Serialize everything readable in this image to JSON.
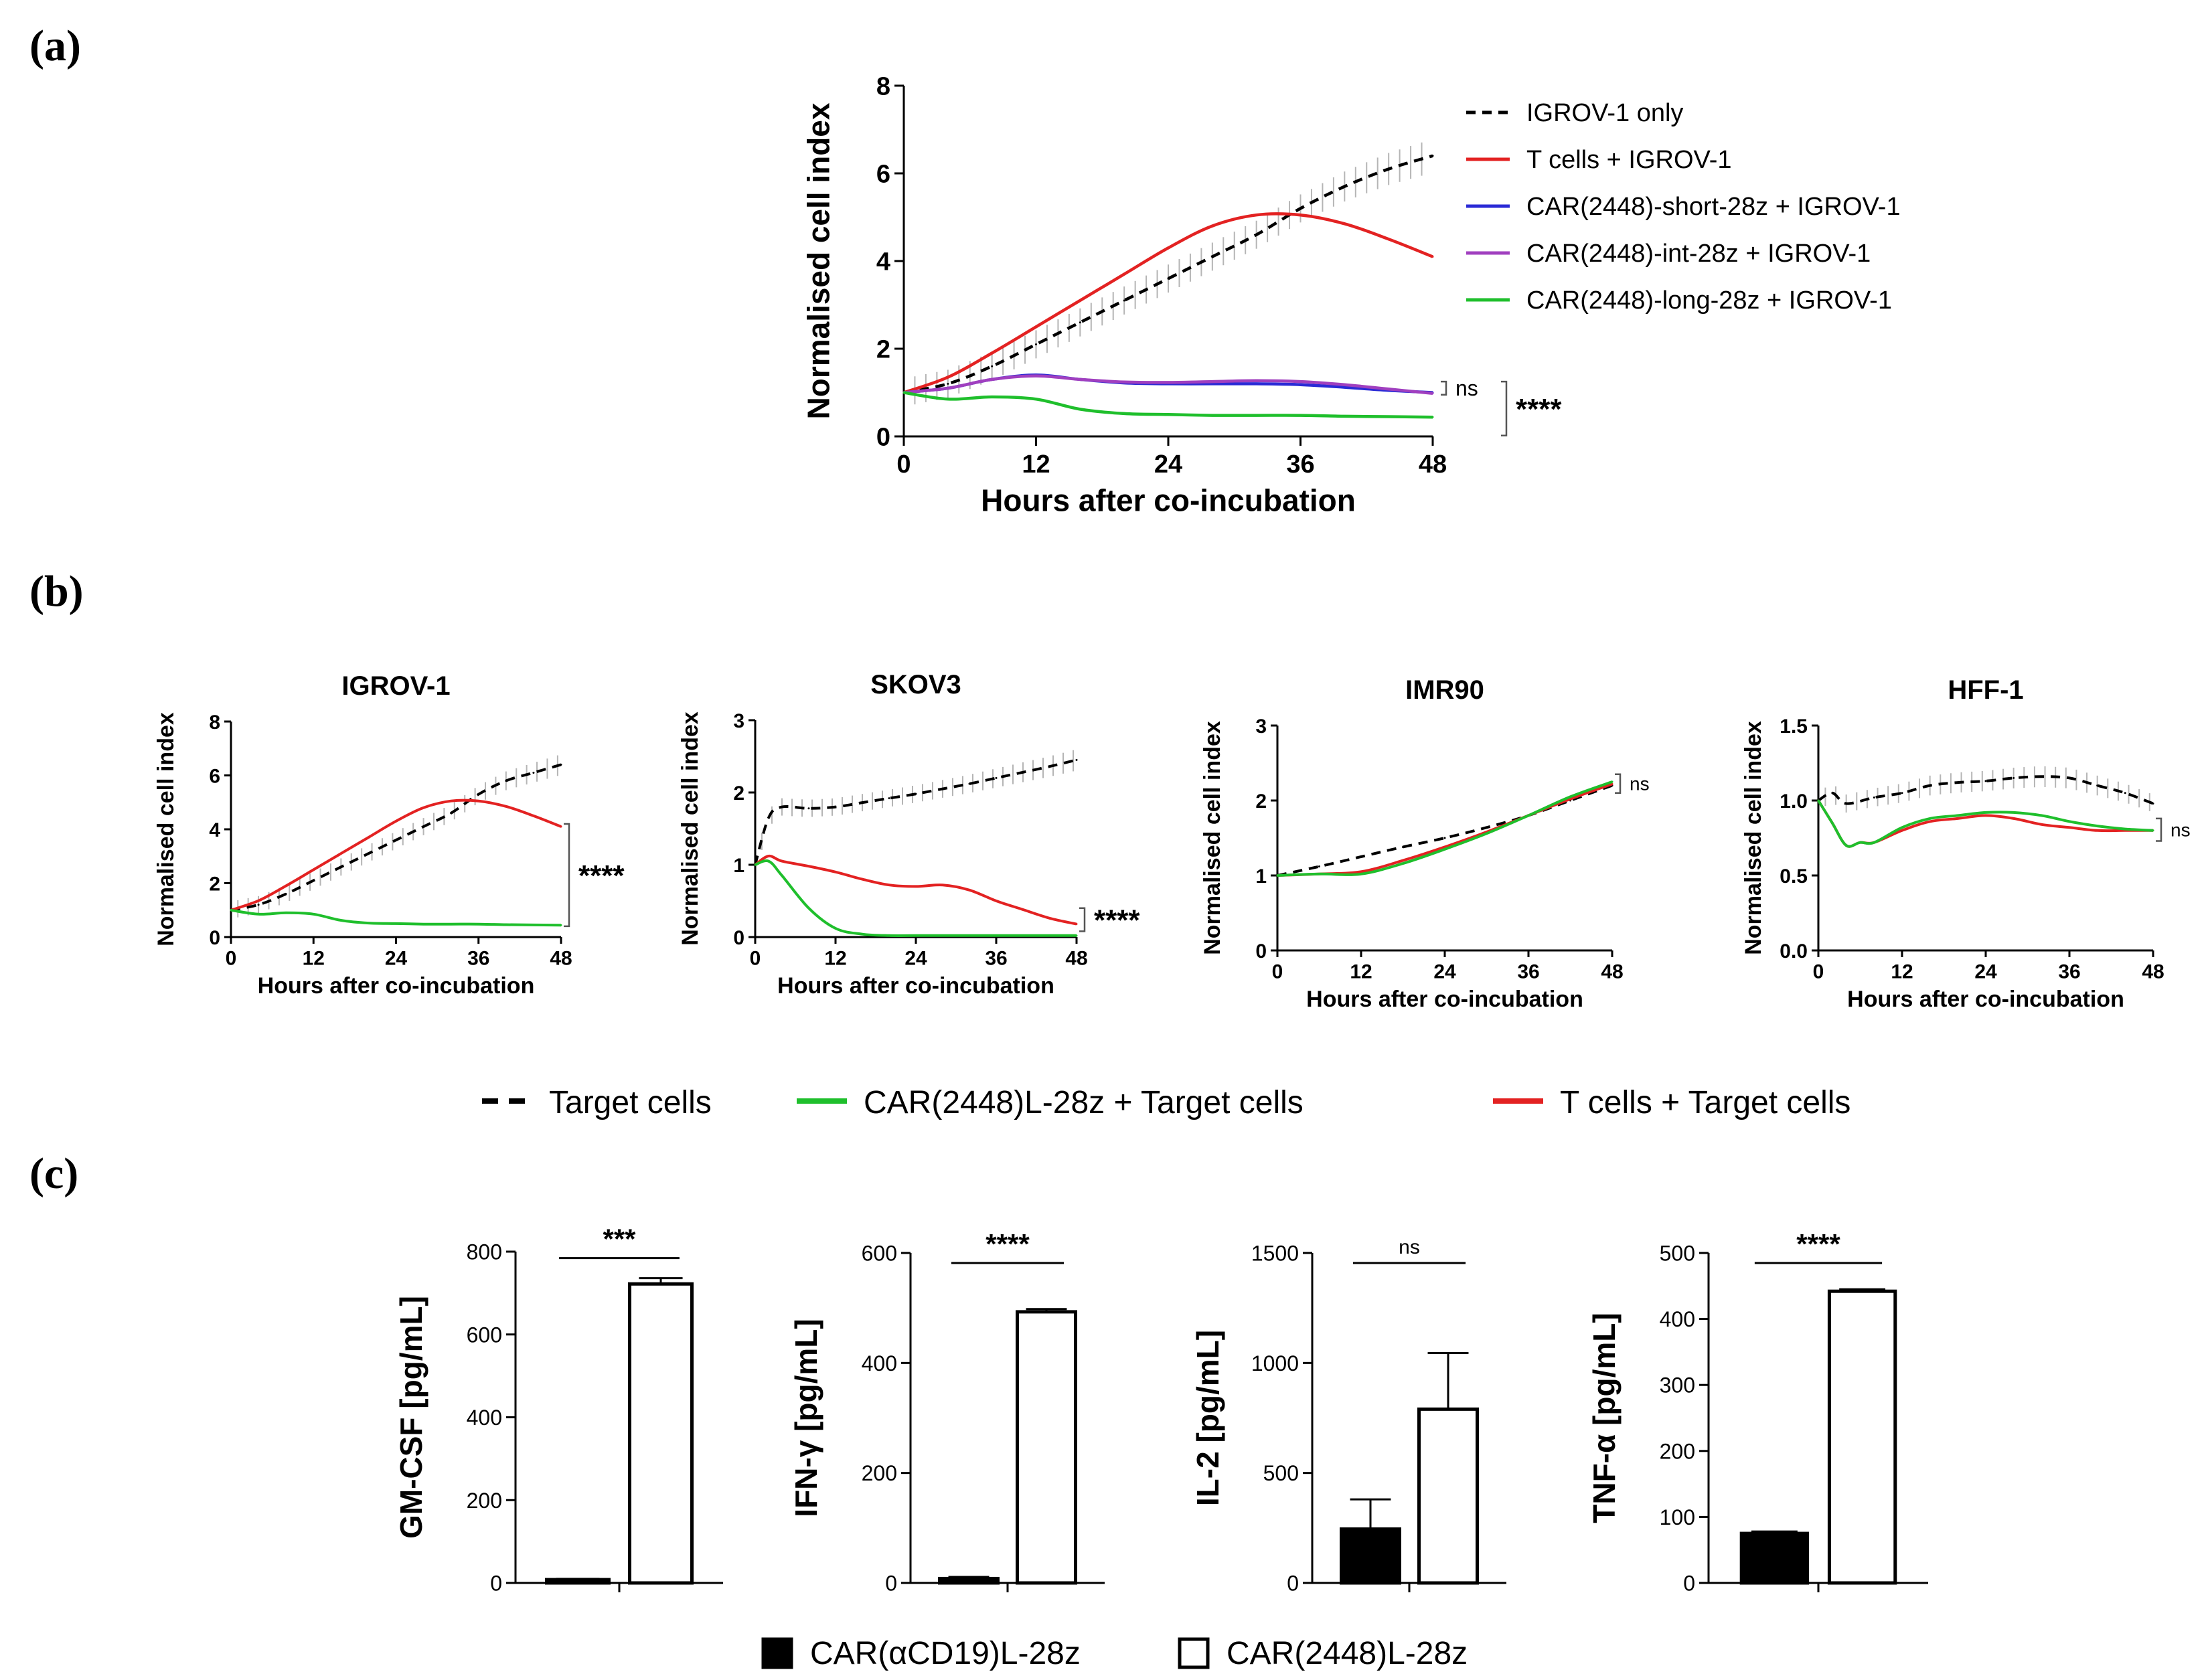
{
  "panel_labels": [
    "(a)",
    "(b)",
    "(c)"
  ],
  "colors": {
    "target_only": "#000000",
    "t_cells": "#e32222",
    "car_short": "#2a2ad6",
    "car_int": "#a03fbf",
    "car_long": "#1fbf2c",
    "error_bar": "#aaaaaa",
    "bar_fill_alpha_cd19": "#000000",
    "bar_fill_2448": "#ffffff"
  },
  "legend_b": [
    {
      "label": "Target cells",
      "style": "dashed",
      "color": "#000000"
    },
    {
      "label": "CAR(2448)L-28z + Target cells",
      "style": "solid",
      "color": "#1fbf2c"
    },
    {
      "label": "T cells + Target cells",
      "style": "solid",
      "color": "#e32222"
    }
  ],
  "legend_c": [
    {
      "label": "CAR(αCD19)L-28z",
      "fill": "#000000"
    },
    {
      "label": "CAR(2448)L-28z",
      "fill": "#ffffff"
    }
  ],
  "chart_data": [
    {
      "id": "a",
      "type": "line",
      "title": "",
      "xlabel": "Hours after co-incubation",
      "ylabel": "Normalised cell index",
      "xlim": [
        0,
        48
      ],
      "ylim": [
        0,
        8
      ],
      "xticks": [
        0,
        12,
        24,
        36,
        48
      ],
      "yticks": [
        0,
        2,
        4,
        6,
        8
      ],
      "legend_position": "top-right",
      "series": [
        {
          "name": "IGROV-1 only",
          "color": "#000000",
          "style": "dashed",
          "errorbars": true,
          "x": [
            0,
            4,
            8,
            12,
            16,
            20,
            24,
            28,
            32,
            36,
            40,
            44,
            48
          ],
          "y": [
            1.0,
            1.2,
            1.6,
            2.1,
            2.6,
            3.1,
            3.6,
            4.1,
            4.6,
            5.2,
            5.7,
            6.1,
            6.4
          ]
        },
        {
          "name": "T cells + IGROV-1",
          "color": "#e32222",
          "style": "solid",
          "x": [
            0,
            4,
            8,
            12,
            16,
            20,
            24,
            28,
            32,
            36,
            40,
            44,
            48
          ],
          "y": [
            1.0,
            1.35,
            1.9,
            2.5,
            3.1,
            3.7,
            4.3,
            4.8,
            5.05,
            5.05,
            4.85,
            4.5,
            4.1
          ]
        },
        {
          "name": "CAR(2448)-short-28z + IGROV-1",
          "color": "#2a2ad6",
          "style": "solid",
          "x": [
            0,
            4,
            8,
            12,
            16,
            20,
            24,
            28,
            32,
            36,
            40,
            44,
            48
          ],
          "y": [
            1.0,
            1.1,
            1.3,
            1.4,
            1.3,
            1.22,
            1.2,
            1.2,
            1.2,
            1.18,
            1.12,
            1.05,
            1.0
          ]
        },
        {
          "name": "CAR(2448)-int-28z + IGROV-1",
          "color": "#a03fbf",
          "style": "solid",
          "x": [
            0,
            4,
            8,
            12,
            16,
            20,
            24,
            28,
            32,
            36,
            40,
            44,
            48
          ],
          "y": [
            1.0,
            1.1,
            1.3,
            1.38,
            1.3,
            1.24,
            1.23,
            1.25,
            1.27,
            1.25,
            1.18,
            1.08,
            0.98
          ]
        },
        {
          "name": "CAR(2448)-long-28z + IGROV-1",
          "color": "#1fbf2c",
          "style": "solid",
          "x": [
            0,
            4,
            8,
            12,
            16,
            20,
            24,
            28,
            32,
            36,
            40,
            44,
            48
          ],
          "y": [
            1.0,
            0.85,
            0.9,
            0.85,
            0.62,
            0.52,
            0.5,
            0.48,
            0.48,
            0.48,
            0.46,
            0.45,
            0.44
          ]
        }
      ],
      "annotations": [
        "ns",
        "****"
      ]
    },
    {
      "id": "b1",
      "type": "line",
      "title": "IGROV-1",
      "xlabel": "Hours after co-incubation",
      "ylabel": "Normalised cell index",
      "xlim": [
        0,
        48
      ],
      "ylim": [
        0,
        8
      ],
      "xticks": [
        0,
        12,
        24,
        36,
        48
      ],
      "yticks": [
        0,
        2,
        4,
        6,
        8
      ],
      "series": [
        {
          "name": "Target cells",
          "color": "#000000",
          "style": "dashed",
          "errorbars": true,
          "x": [
            0,
            4,
            8,
            12,
            16,
            20,
            24,
            28,
            32,
            36,
            40,
            44,
            48
          ],
          "y": [
            1.0,
            1.2,
            1.6,
            2.1,
            2.6,
            3.1,
            3.6,
            4.1,
            4.6,
            5.3,
            5.8,
            6.1,
            6.4
          ]
        },
        {
          "name": "T cells + Target cells",
          "color": "#e32222",
          "style": "solid",
          "x": [
            0,
            4,
            8,
            12,
            16,
            20,
            24,
            28,
            32,
            36,
            40,
            44,
            48
          ],
          "y": [
            1.0,
            1.35,
            1.9,
            2.5,
            3.1,
            3.7,
            4.3,
            4.8,
            5.05,
            5.05,
            4.85,
            4.5,
            4.1
          ]
        },
        {
          "name": "CAR(2448)L-28z + Target cells",
          "color": "#1fbf2c",
          "style": "solid",
          "x": [
            0,
            4,
            8,
            12,
            16,
            20,
            24,
            28,
            32,
            36,
            40,
            44,
            48
          ],
          "y": [
            1.0,
            0.85,
            0.9,
            0.85,
            0.62,
            0.52,
            0.5,
            0.48,
            0.48,
            0.48,
            0.46,
            0.45,
            0.44
          ]
        }
      ],
      "annotations": [
        "****"
      ]
    },
    {
      "id": "b2",
      "type": "line",
      "title": "SKOV3",
      "xlabel": "Hours after co-incubation",
      "ylabel": "Normalised cell index",
      "xlim": [
        0,
        48
      ],
      "ylim": [
        0,
        3
      ],
      "xticks": [
        0,
        12,
        24,
        36,
        48
      ],
      "yticks": [
        0,
        1,
        2,
        3
      ],
      "series": [
        {
          "name": "Target cells",
          "color": "#000000",
          "style": "dashed",
          "errorbars": true,
          "x": [
            0,
            2,
            4,
            8,
            12,
            16,
            20,
            24,
            28,
            32,
            36,
            40,
            44,
            48
          ],
          "y": [
            1.0,
            1.65,
            1.8,
            1.78,
            1.8,
            1.86,
            1.92,
            1.98,
            2.05,
            2.12,
            2.2,
            2.28,
            2.36,
            2.45
          ]
        },
        {
          "name": "T cells + Target cells",
          "color": "#e32222",
          "style": "solid",
          "x": [
            0,
            2,
            4,
            8,
            12,
            16,
            20,
            24,
            28,
            32,
            36,
            40,
            44,
            48
          ],
          "y": [
            1.0,
            1.12,
            1.05,
            0.98,
            0.9,
            0.8,
            0.72,
            0.7,
            0.72,
            0.65,
            0.5,
            0.38,
            0.26,
            0.18
          ]
        },
        {
          "name": "CAR(2448)L-28z + Target cells",
          "color": "#1fbf2c",
          "style": "solid",
          "x": [
            0,
            2,
            4,
            8,
            12,
            16,
            20,
            24,
            28,
            32,
            36,
            40,
            44,
            48
          ],
          "y": [
            1.0,
            1.05,
            0.85,
            0.4,
            0.12,
            0.04,
            0.02,
            0.02,
            0.02,
            0.02,
            0.02,
            0.02,
            0.02,
            0.02
          ]
        }
      ],
      "annotations": [
        "****"
      ]
    },
    {
      "id": "b3",
      "type": "line",
      "title": "IMR90",
      "xlabel": "Hours after co-incubation",
      "ylabel": "Normalised cell index",
      "xlim": [
        0,
        48
      ],
      "ylim": [
        0,
        3
      ],
      "xticks": [
        0,
        12,
        24,
        36,
        48
      ],
      "yticks": [
        0,
        1,
        2,
        3
      ],
      "series": [
        {
          "name": "Target cells",
          "color": "#000000",
          "style": "dashed",
          "errorbars": false,
          "x": [
            0,
            6,
            12,
            18,
            24,
            30,
            36,
            42,
            48
          ],
          "y": [
            1.0,
            1.12,
            1.25,
            1.38,
            1.5,
            1.64,
            1.8,
            2.0,
            2.2
          ]
        },
        {
          "name": "T cells + Target cells",
          "color": "#e32222",
          "style": "solid",
          "x": [
            0,
            6,
            12,
            18,
            24,
            30,
            36,
            42,
            48
          ],
          "y": [
            1.0,
            1.02,
            1.05,
            1.2,
            1.38,
            1.58,
            1.8,
            2.02,
            2.22
          ]
        },
        {
          "name": "CAR(2448)L-28z + Target cells",
          "color": "#1fbf2c",
          "style": "solid",
          "x": [
            0,
            6,
            12,
            18,
            24,
            30,
            36,
            42,
            48
          ],
          "y": [
            1.0,
            1.02,
            1.02,
            1.16,
            1.35,
            1.56,
            1.8,
            2.05,
            2.25
          ]
        }
      ],
      "annotations": [
        "ns"
      ]
    },
    {
      "id": "b4",
      "type": "line",
      "title": "HFF-1",
      "xlabel": "Hours after co-incubation",
      "ylabel": "Normalised cell index",
      "xlim": [
        0,
        48
      ],
      "ylim": [
        0,
        1.5
      ],
      "xticks": [
        0,
        12,
        24,
        36,
        48
      ],
      "yticks": [
        0.0,
        0.5,
        1.0,
        1.5
      ],
      "series": [
        {
          "name": "Target cells",
          "color": "#000000",
          "style": "dashed",
          "errorbars": true,
          "x": [
            0,
            2,
            4,
            8,
            12,
            16,
            20,
            24,
            28,
            32,
            36,
            40,
            44,
            48
          ],
          "y": [
            1.0,
            1.05,
            0.98,
            1.02,
            1.05,
            1.1,
            1.12,
            1.13,
            1.15,
            1.16,
            1.15,
            1.1,
            1.05,
            0.98
          ]
        },
        {
          "name": "T cells + Target cells",
          "color": "#e32222",
          "style": "solid",
          "x": [
            0,
            2,
            4,
            6,
            8,
            12,
            16,
            20,
            24,
            28,
            32,
            36,
            40,
            44,
            48
          ],
          "y": [
            1.0,
            0.85,
            0.7,
            0.72,
            0.72,
            0.8,
            0.86,
            0.88,
            0.9,
            0.88,
            0.84,
            0.82,
            0.8,
            0.8,
            0.8
          ]
        },
        {
          "name": "CAR(2448)L-28z + Target cells",
          "color": "#1fbf2c",
          "style": "solid",
          "x": [
            0,
            2,
            4,
            6,
            8,
            12,
            16,
            20,
            24,
            28,
            32,
            36,
            40,
            44,
            48
          ],
          "y": [
            1.0,
            0.85,
            0.7,
            0.72,
            0.72,
            0.82,
            0.88,
            0.9,
            0.92,
            0.92,
            0.9,
            0.86,
            0.83,
            0.81,
            0.8
          ]
        }
      ],
      "annotations": [
        "ns"
      ]
    },
    {
      "id": "c1",
      "type": "bar",
      "ylabel": "GM-CSF [pg/mL]",
      "ylim": [
        0,
        800
      ],
      "yticks": [
        0,
        200,
        400,
        600,
        800
      ],
      "categories": [
        "CAR(αCD19)L-28z",
        "CAR(2448)L-28z"
      ],
      "values": [
        8,
        722
      ],
      "errors": [
        2,
        14
      ],
      "significance": "***"
    },
    {
      "id": "c2",
      "type": "bar",
      "ylabel": "IFN-γ [pg/mL]",
      "ylim": [
        0,
        600
      ],
      "yticks": [
        0,
        200,
        400,
        600
      ],
      "categories": [
        "CAR(αCD19)L-28z",
        "CAR(2448)L-28z"
      ],
      "values": [
        8,
        493
      ],
      "errors": [
        3,
        5
      ],
      "significance": "****"
    },
    {
      "id": "c3",
      "type": "bar",
      "ylabel": "IL-2 [pg/mL]",
      "ylim": [
        0,
        1500
      ],
      "yticks": [
        0,
        500,
        1000,
        1500
      ],
      "categories": [
        "CAR(αCD19)L-28z",
        "CAR(2448)L-28z"
      ],
      "values": [
        245,
        790
      ],
      "errors": [
        135,
        255
      ],
      "significance": "ns"
    },
    {
      "id": "c4",
      "type": "bar",
      "ylabel": "TNF-α [pg/mL]",
      "ylim": [
        0,
        500
      ],
      "yticks": [
        0,
        100,
        200,
        300,
        400,
        500
      ],
      "categories": [
        "CAR(αCD19)L-28z",
        "CAR(2448)L-28z"
      ],
      "values": [
        75,
        442
      ],
      "errors": [
        3,
        3
      ],
      "significance": "****"
    }
  ]
}
